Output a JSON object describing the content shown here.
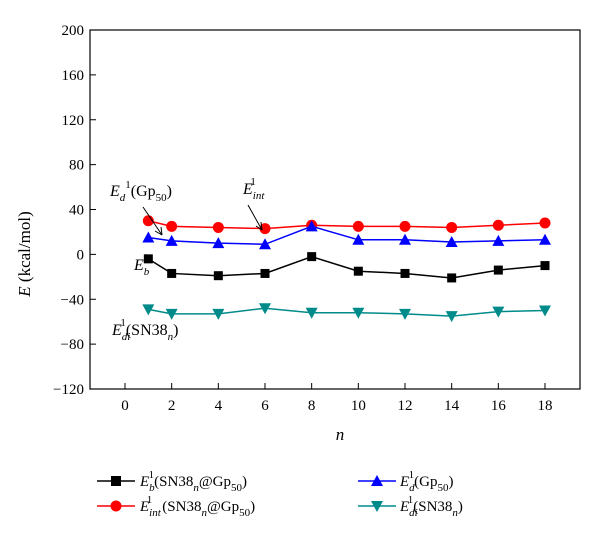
{
  "chart_data": {
    "type": "line",
    "xlabel": "n",
    "ylabel": "E (kcal/mol)",
    "xlim": [
      -1.5,
      19.5
    ],
    "ylim": [
      -120,
      200
    ],
    "xticks": [
      0,
      2,
      4,
      6,
      8,
      10,
      12,
      14,
      16,
      18
    ],
    "yticks": [
      -120,
      -80,
      -40,
      0,
      40,
      80,
      120,
      160,
      200
    ],
    "x": [
      1,
      2,
      4,
      6,
      8,
      10,
      12,
      14,
      16,
      18
    ],
    "series": [
      {
        "name": "E_b^1(SN38_n@Gp_50)",
        "color": "#000000",
        "marker": "square",
        "values": [
          -4,
          -17,
          -19,
          -17,
          -2,
          -15,
          -17,
          -21,
          -14,
          -10
        ]
      },
      {
        "name": "E_int^1(SN38_n@Gp_50)",
        "color": "#ff0000",
        "marker": "circle",
        "values": [
          30,
          25,
          24,
          23,
          26,
          25,
          25,
          24,
          26,
          28
        ]
      },
      {
        "name": "E_d^1(Gp_50)",
        "color": "#0000ff",
        "marker": "triangle-up",
        "values": [
          15,
          12,
          10,
          9,
          25,
          13,
          13,
          11,
          12,
          13
        ]
      },
      {
        "name": "E_di^1(SN38_n)",
        "color": "#008b8b",
        "marker": "triangle-down",
        "values": [
          -49,
          -53,
          -53,
          -48,
          -52,
          -52,
          -53,
          -55,
          -51,
          -50
        ]
      }
    ],
    "legend_position": "bottom",
    "grid": false
  }
}
